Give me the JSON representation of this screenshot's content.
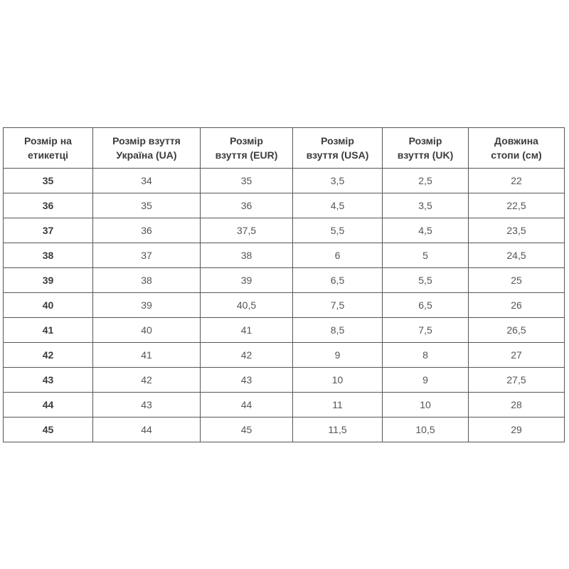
{
  "chart_data": {
    "type": "table",
    "title": "",
    "columns": [
      "Розмір на етикетці",
      "Розмір взуття Україна (UA)",
      "Розмір взуття (EUR)",
      "Розмір взуття (USA)",
      "Розмір взуття (UK)",
      "Довжина стопи (см)"
    ],
    "rows": [
      [
        "35",
        "34",
        "35",
        "3,5",
        "2,5",
        "22"
      ],
      [
        "36",
        "35",
        "36",
        "4,5",
        "3,5",
        "22,5"
      ],
      [
        "37",
        "36",
        "37,5",
        "5,5",
        "4,5",
        "23,5"
      ],
      [
        "38",
        "37",
        "38",
        "6",
        "5",
        "24,5"
      ],
      [
        "39",
        "38",
        "39",
        "6,5",
        "5,5",
        "25"
      ],
      [
        "40",
        "39",
        "40,5",
        "7,5",
        "6,5",
        "26"
      ],
      [
        "41",
        "40",
        "41",
        "8,5",
        "7,5",
        "26,5"
      ],
      [
        "42",
        "41",
        "42",
        "9",
        "8",
        "27"
      ],
      [
        "43",
        "42",
        "43",
        "10",
        "9",
        "27,5"
      ],
      [
        "44",
        "43",
        "44",
        "11",
        "10",
        "28"
      ],
      [
        "45",
        "44",
        "45",
        "11,5",
        "10,5",
        "29"
      ]
    ]
  },
  "table": {
    "headers": [
      "Розмір на\nетикетці",
      "Розмір взуття\nУкраїна (UA)",
      "Розмір\nвзуття (EUR)",
      "Розмір\nвзуття (USA)",
      "Розмір\nвзуття (UK)",
      "Довжина\nстопи (см)"
    ]
  },
  "colors": {
    "background": "#ffffff",
    "border": "#565656",
    "header_text": "#3b3b3b",
    "cell_text": "#555555"
  }
}
